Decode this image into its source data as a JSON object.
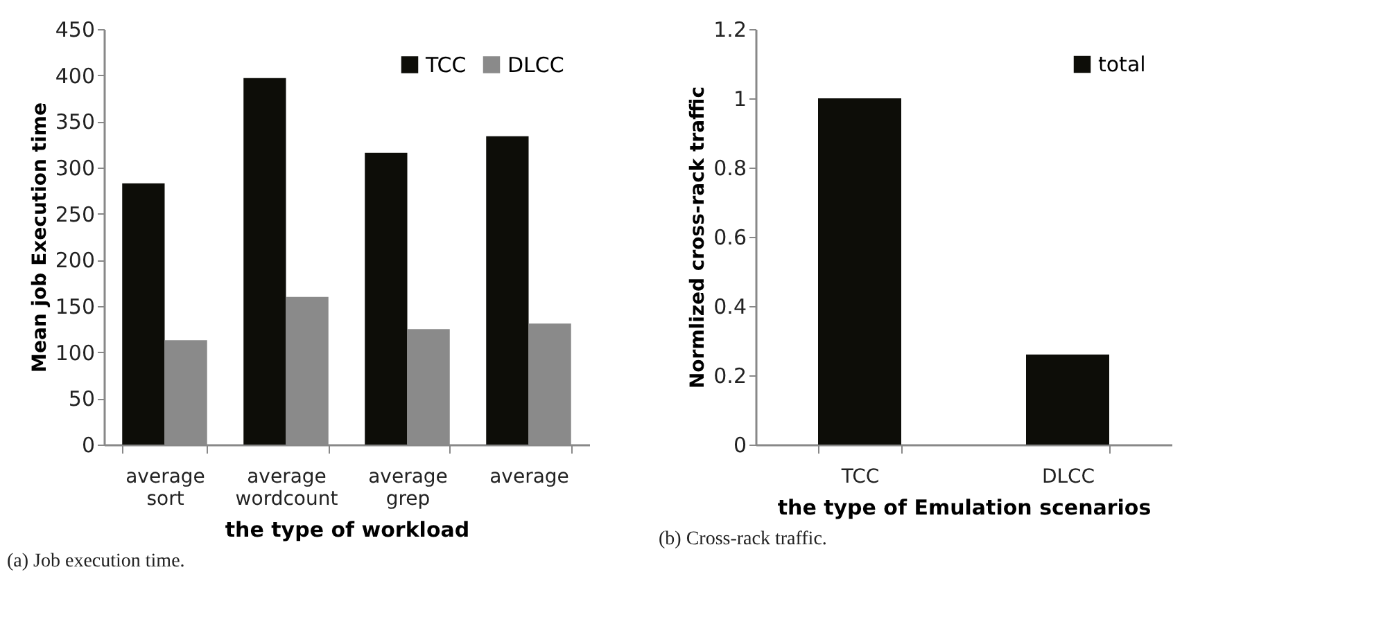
{
  "chart_data": [
    {
      "type": "bar",
      "xlabel": "the type of workload",
      "ylabel": "Mean job Execution time",
      "categories": [
        "average sort",
        "average wordcount",
        "average grep",
        "average"
      ],
      "series": [
        {
          "name": "TCC",
          "color": "#0d0d08",
          "values": [
            283,
            397,
            316,
            334
          ]
        },
        {
          "name": "DLCC",
          "color": "#8a8a8a",
          "values": [
            113,
            160,
            125,
            131
          ]
        }
      ],
      "ylim": [
        0,
        450
      ],
      "yticks": [
        0,
        50,
        100,
        150,
        200,
        250,
        300,
        350,
        400,
        450
      ],
      "grid": false,
      "legend": "top right",
      "annotations": [
        "(a) Job execution time."
      ]
    },
    {
      "type": "bar",
      "xlabel": "the type of Emulation scenarios",
      "ylabel": "Normlized cross-rack traffic",
      "categories": [
        "TCC",
        "DLCC"
      ],
      "series": [
        {
          "name": "total",
          "color": "#0d0d08",
          "values": [
            1,
            0.26
          ]
        }
      ],
      "ylim": [
        0,
        1.2
      ],
      "yticks": [
        0,
        0.2,
        0.4,
        0.6,
        0.8,
        1,
        1.2
      ],
      "grid": false,
      "legend": "top right",
      "annotations": [
        "(b) Cross-rack traffic."
      ]
    }
  ]
}
